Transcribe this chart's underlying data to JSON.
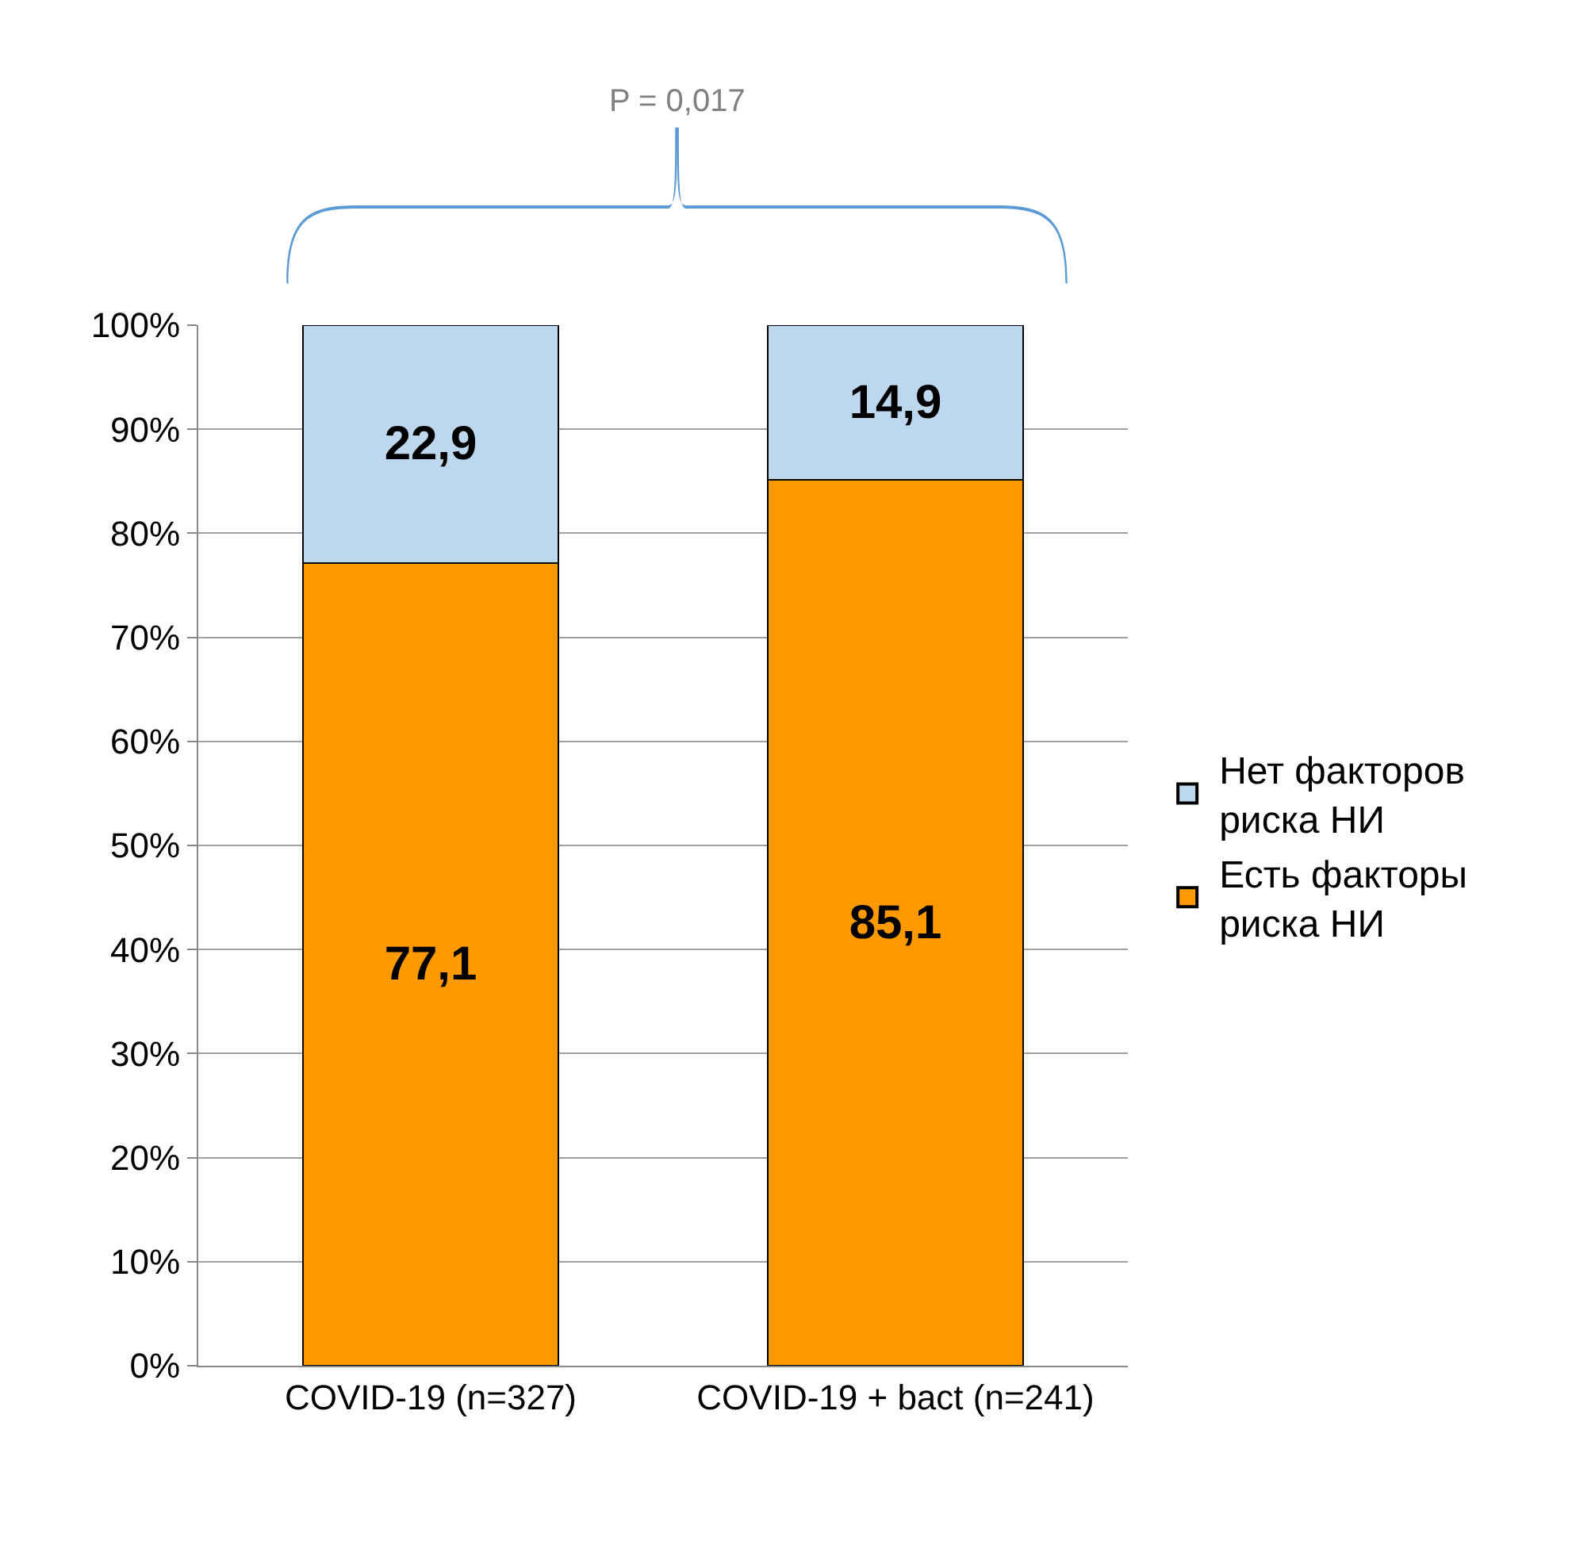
{
  "chart_data": {
    "type": "bar",
    "stacked": true,
    "categories": [
      "COVID-19 (n=327)",
      "COVID-19 + bact (n=241)"
    ],
    "series": [
      {
        "name": "Есть факторы риска НИ",
        "color": "#ff9900",
        "values": [
          77.1,
          85.1
        ],
        "value_labels": [
          "77,1",
          "85,1"
        ]
      },
      {
        "name": "Нет факторов риска НИ",
        "color": "#bdd7ee",
        "values": [
          22.9,
          14.9
        ],
        "value_labels": [
          "22,9",
          "14,9"
        ]
      }
    ],
    "ylim": [
      0,
      100
    ],
    "yticks": [
      {
        "value": 0,
        "label": "0%"
      },
      {
        "value": 10,
        "label": "10%"
      },
      {
        "value": 20,
        "label": "20%"
      },
      {
        "value": 30,
        "label": "30%"
      },
      {
        "value": 40,
        "label": "40%"
      },
      {
        "value": 50,
        "label": "50%"
      },
      {
        "value": 60,
        "label": "60%"
      },
      {
        "value": 70,
        "label": "70%"
      },
      {
        "value": 80,
        "label": "80%"
      },
      {
        "value": 90,
        "label": "90%"
      },
      {
        "value": 100,
        "label": "100%"
      }
    ],
    "grid": "y",
    "legend": "right",
    "annotations": [
      "P = 0,017"
    ]
  }
}
